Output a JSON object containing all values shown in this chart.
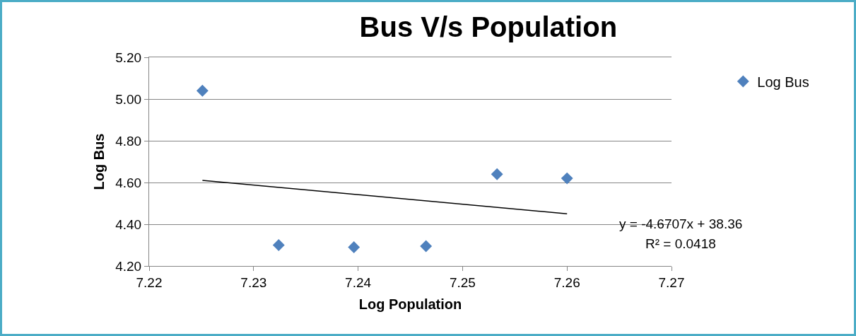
{
  "chart_data": {
    "type": "scatter",
    "title": "Bus V/s Population",
    "xlabel": "Log Population",
    "ylabel": "Log Bus",
    "x": [
      7.2251,
      7.2324,
      7.2396,
      7.2465,
      7.2533,
      7.26
    ],
    "series": [
      {
        "name": "Log Bus",
        "color": "#4f81bd",
        "values": [
          5.04,
          4.3,
          4.29,
          4.295,
          4.64,
          4.62
        ]
      },
      {
        "type": "line",
        "marker": "none",
        "color": "#000000",
        "x": [
          7.2251,
          7.26
        ],
        "values": [
          4.61,
          4.45
        ]
      }
    ],
    "xlim": [
      7.22,
      7.27
    ],
    "xticks": [
      7.22,
      7.23,
      7.24,
      7.25,
      7.26,
      7.27
    ],
    "ylim": [
      4.2,
      5.2
    ],
    "yticks": [
      {
        "value": 4.2,
        "label": "4.20"
      },
      {
        "value": 4.4,
        "label": "4.40"
      },
      {
        "value": 4.6,
        "label": "4.60"
      },
      {
        "value": 4.8,
        "label": "4.80"
      },
      {
        "value": 5.0,
        "label": "5.00"
      },
      {
        "value": 5.2,
        "label": "5.20"
      }
    ],
    "annotations": [
      "y = -4.6707x + 38.36",
      "R² = 0.0418"
    ],
    "grid": "y",
    "legend": "right",
    "marker": "diamond"
  }
}
